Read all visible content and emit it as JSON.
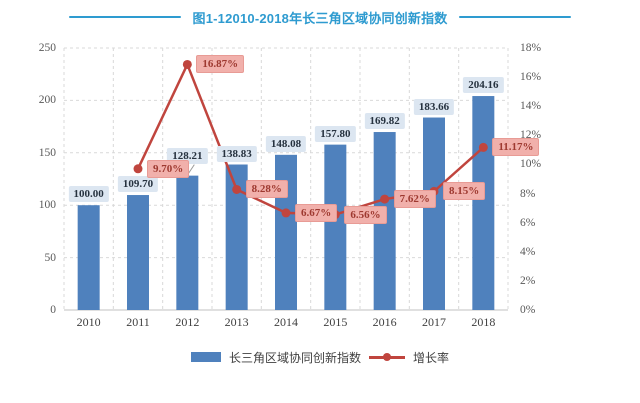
{
  "title": {
    "text": "图1-12010-2018年长三角区域协同创新指数"
  },
  "colors": {
    "title": "#2e9bd0",
    "bar": "#4f81bd",
    "line": "#c0453e",
    "bar_label_bg": "#dce6f1",
    "bar_label_text": "#26323f",
    "growth_label_bg": "#f1b0ab",
    "growth_label_border": "#e89b95",
    "growth_label_text": "#9e3930",
    "grid": "#d9d9d9",
    "axis_line": "#c0c0c0",
    "axis_text": "#595959",
    "leader": "#9a9a9a"
  },
  "legend": {
    "bar_label": "长三角区域协同创新指数",
    "line_label": "增长率"
  },
  "chart_data": {
    "type": "bar+line",
    "title": "图1-12010-2018年长三角区域协同创新指数",
    "categories": [
      "2010",
      "2011",
      "2012",
      "2013",
      "2014",
      "2015",
      "2016",
      "2017",
      "2018"
    ],
    "series": [
      {
        "name": "长三角区域协同创新指数",
        "type": "bar",
        "axis": "left",
        "values": [
          100.0,
          109.7,
          128.21,
          138.83,
          148.08,
          157.8,
          169.82,
          183.66,
          204.16
        ],
        "labels": [
          "100.00",
          "109.70",
          "128.21",
          "138.83",
          "148.08",
          "157.80",
          "169.82",
          "183.66",
          "204.16"
        ]
      },
      {
        "name": "增长率",
        "type": "line",
        "axis": "right",
        "values": [
          null,
          9.7,
          16.87,
          8.28,
          6.67,
          6.56,
          7.62,
          8.15,
          11.17
        ],
        "labels": [
          null,
          "9.70%",
          "16.87%",
          "8.28%",
          "6.67%",
          "6.56%",
          "7.62%",
          "8.15%",
          "11.17%"
        ]
      }
    ],
    "left_axis": {
      "min": 0,
      "max": 250,
      "tick_values": [
        0,
        50,
        100,
        150,
        200,
        250
      ],
      "tick_labels": [
        "0",
        "50",
        "100",
        "150",
        "200",
        "250"
      ]
    },
    "right_axis": {
      "min": 0,
      "max": 18,
      "tick_values": [
        0,
        2,
        4,
        6,
        8,
        10,
        12,
        14,
        16,
        18
      ],
      "tick_labels": [
        "0%",
        "2%",
        "4%",
        "6%",
        "8%",
        "10%",
        "12%",
        "14%",
        "16%",
        "18%"
      ]
    },
    "grid": "dashed",
    "legend_position": "bottom"
  }
}
